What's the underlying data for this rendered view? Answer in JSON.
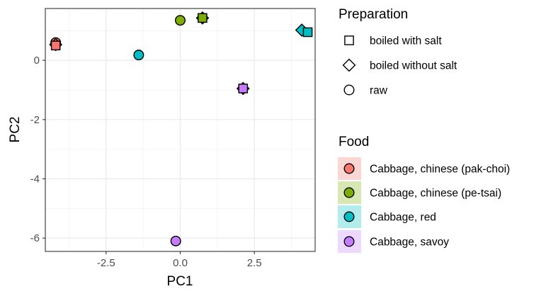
{
  "chart_data": {
    "type": "scatter",
    "xlabel": "PC1",
    "ylabel": "PC2",
    "xlim": [
      -4.55,
      4.55
    ],
    "ylim": [
      -6.45,
      1.75
    ],
    "x_ticks": [
      -2.5,
      0,
      2.5
    ],
    "x_tick_labels": [
      "-2.5",
      "0.0",
      "2.5"
    ],
    "y_ticks": [
      -6,
      -4,
      -2,
      0
    ],
    "y_tick_labels": [
      "-6",
      "-4",
      "-2",
      "0"
    ],
    "grid": true,
    "legend_position": "right",
    "shape_legend": {
      "title": "Preparation",
      "entries": [
        {
          "label": "boiled with salt",
          "shape": "square"
        },
        {
          "label": "boiled without salt",
          "shape": "diamond"
        },
        {
          "label": "raw",
          "shape": "circle"
        }
      ]
    },
    "color_legend": {
      "title": "Food",
      "entries": [
        {
          "label": "Cabbage, chinese (pak-choi)",
          "color": "#F8766D",
          "background": "#FCD6D3"
        },
        {
          "label": "Cabbage, chinese (pe-tsai)",
          "color": "#7CAE00",
          "background": "#D8E7B3"
        },
        {
          "label": "Cabbage, red",
          "color": "#00BFC4",
          "background": "#B3ECED"
        },
        {
          "label": "Cabbage, savoy",
          "color": "#C77CFF",
          "background": "#EDD8FF"
        }
      ]
    },
    "points": [
      {
        "food": "Cabbage, chinese (pak-choi)",
        "preparation": "raw",
        "x": -4.2,
        "y": 0.6
      },
      {
        "food": "Cabbage, chinese (pak-choi)",
        "preparation": "boiled without salt",
        "x": -4.2,
        "y": 0.53
      },
      {
        "food": "Cabbage, chinese (pak-choi)",
        "preparation": "boiled with salt",
        "x": -4.2,
        "y": 0.5
      },
      {
        "food": "Cabbage, chinese (pe-tsai)",
        "preparation": "raw",
        "x": 0.0,
        "y": 1.35
      },
      {
        "food": "Cabbage, chinese (pe-tsai)",
        "preparation": "boiled without salt",
        "x": 0.75,
        "y": 1.43
      },
      {
        "food": "Cabbage, chinese (pe-tsai)",
        "preparation": "boiled with salt",
        "x": 0.75,
        "y": 1.43
      },
      {
        "food": "Cabbage, red",
        "preparation": "raw",
        "x": -1.4,
        "y": 0.18
      },
      {
        "food": "Cabbage, red",
        "preparation": "boiled without salt",
        "x": 4.1,
        "y": 1.02
      },
      {
        "food": "Cabbage, red",
        "preparation": "boiled with salt",
        "x": 4.3,
        "y": 0.95
      },
      {
        "food": "Cabbage, savoy",
        "preparation": "raw",
        "x": -0.15,
        "y": -6.1
      },
      {
        "food": "Cabbage, savoy",
        "preparation": "boiled without salt",
        "x": 2.12,
        "y": -0.95
      },
      {
        "food": "Cabbage, savoy",
        "preparation": "boiled with salt",
        "x": 2.12,
        "y": -0.95
      }
    ]
  }
}
